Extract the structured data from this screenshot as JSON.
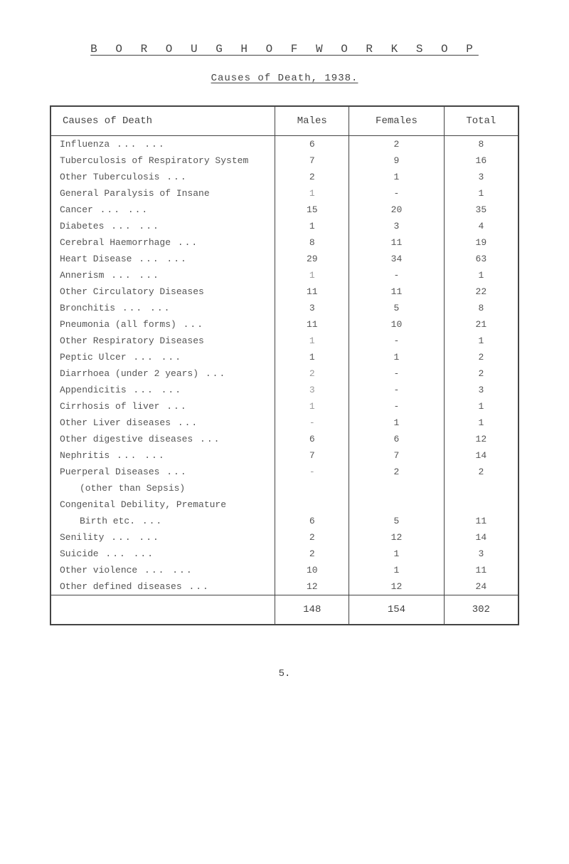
{
  "header": {
    "borough": "B O R O U G H   O F   W O R K S O P",
    "subtitle": "Causes of Death, 1938."
  },
  "table": {
    "columns": [
      "Causes of Death",
      "Males",
      "Females",
      "Total"
    ],
    "rows": [
      {
        "cause": "Influenza",
        "dots": "...      ...",
        "males": "6",
        "females": "2",
        "total": "8"
      },
      {
        "cause": "Tuberculosis of Respiratory System",
        "dots": "",
        "males": "7",
        "females": "9",
        "total": "16"
      },
      {
        "cause": "Other Tuberculosis",
        "dots": "     ...",
        "males": "2",
        "females": "1",
        "total": "3"
      },
      {
        "cause": "General Paralysis of Insane",
        "dots": "",
        "males": "1",
        "females": "-",
        "total": "1"
      },
      {
        "cause": "Cancer",
        "dots": "...      ...",
        "males": "15",
        "females": "20",
        "total": "35"
      },
      {
        "cause": "Diabetes",
        "dots": "...      ...",
        "males": "1",
        "females": "3",
        "total": "4"
      },
      {
        "cause": "Cerebral Haemorrhage",
        "dots": "    ...",
        "males": "8",
        "females": "11",
        "total": "19"
      },
      {
        "cause": "Heart Disease",
        "dots": "...      ...",
        "males": "29",
        "females": "34",
        "total": "63"
      },
      {
        "cause": "Annerism",
        "dots": "...      ...",
        "males": "1",
        "females": "-",
        "total": "1"
      },
      {
        "cause": "Other Circulatory Diseases",
        "dots": "",
        "males": "11",
        "females": "11",
        "total": "22"
      },
      {
        "cause": "Bronchitis",
        "dots": "...      ...",
        "males": "3",
        "females": "5",
        "total": "8"
      },
      {
        "cause": "Pneumonia (all forms)",
        "dots": "    ...",
        "males": "11",
        "females": "10",
        "total": "21"
      },
      {
        "cause": "Other Respiratory Diseases",
        "dots": "",
        "males": "1",
        "females": "-",
        "total": "1"
      },
      {
        "cause": "Peptic Ulcer",
        "dots": "...      ...",
        "males": "1",
        "females": "1",
        "total": "2"
      },
      {
        "cause": "Diarrhoea (under 2 years)",
        "dots": " ...",
        "males": "2",
        "females": "-",
        "total": "2"
      },
      {
        "cause": "Appendicitis",
        "dots": "...      ...",
        "males": "3",
        "females": "-",
        "total": "3"
      },
      {
        "cause": "Cirrhosis of liver",
        "dots": "     ...",
        "males": "1",
        "females": "-",
        "total": "1"
      },
      {
        "cause": "Other Liver diseases",
        "dots": "    ...",
        "males": "-",
        "females": "1",
        "total": "1"
      },
      {
        "cause": "Other digestive diseases",
        "dots": " ...",
        "males": "6",
        "females": "6",
        "total": "12"
      },
      {
        "cause": "Nephritis",
        "dots": "...      ...",
        "males": "7",
        "females": "7",
        "total": "14"
      },
      {
        "cause": "Puerperal Diseases",
        "dots": "     ...",
        "males": "-",
        "females": "2",
        "total": "2"
      },
      {
        "cause": "(other than Sepsis)",
        "dots": "",
        "males": "",
        "females": "",
        "total": "",
        "indent": true
      },
      {
        "cause": "Congenital Debility, Premature",
        "dots": "",
        "males": "",
        "females": "",
        "total": ""
      },
      {
        "cause": "Birth etc.",
        "dots": "         ...",
        "males": "6",
        "females": "5",
        "total": "11",
        "indent": true
      },
      {
        "cause": "Senility",
        "dots": "...      ...",
        "males": "2",
        "females": "12",
        "total": "14"
      },
      {
        "cause": "Suicide",
        "dots": "...      ...",
        "males": "2",
        "females": "1",
        "total": "3"
      },
      {
        "cause": "Other violence",
        "dots": "...    ...",
        "males": "10",
        "females": "1",
        "total": "11"
      },
      {
        "cause": "Other defined diseases",
        "dots": "   ...",
        "males": "12",
        "females": "12",
        "total": "24"
      }
    ],
    "totals": {
      "males": "148",
      "females": "154",
      "total": "302"
    }
  },
  "pageNumber": "5."
}
